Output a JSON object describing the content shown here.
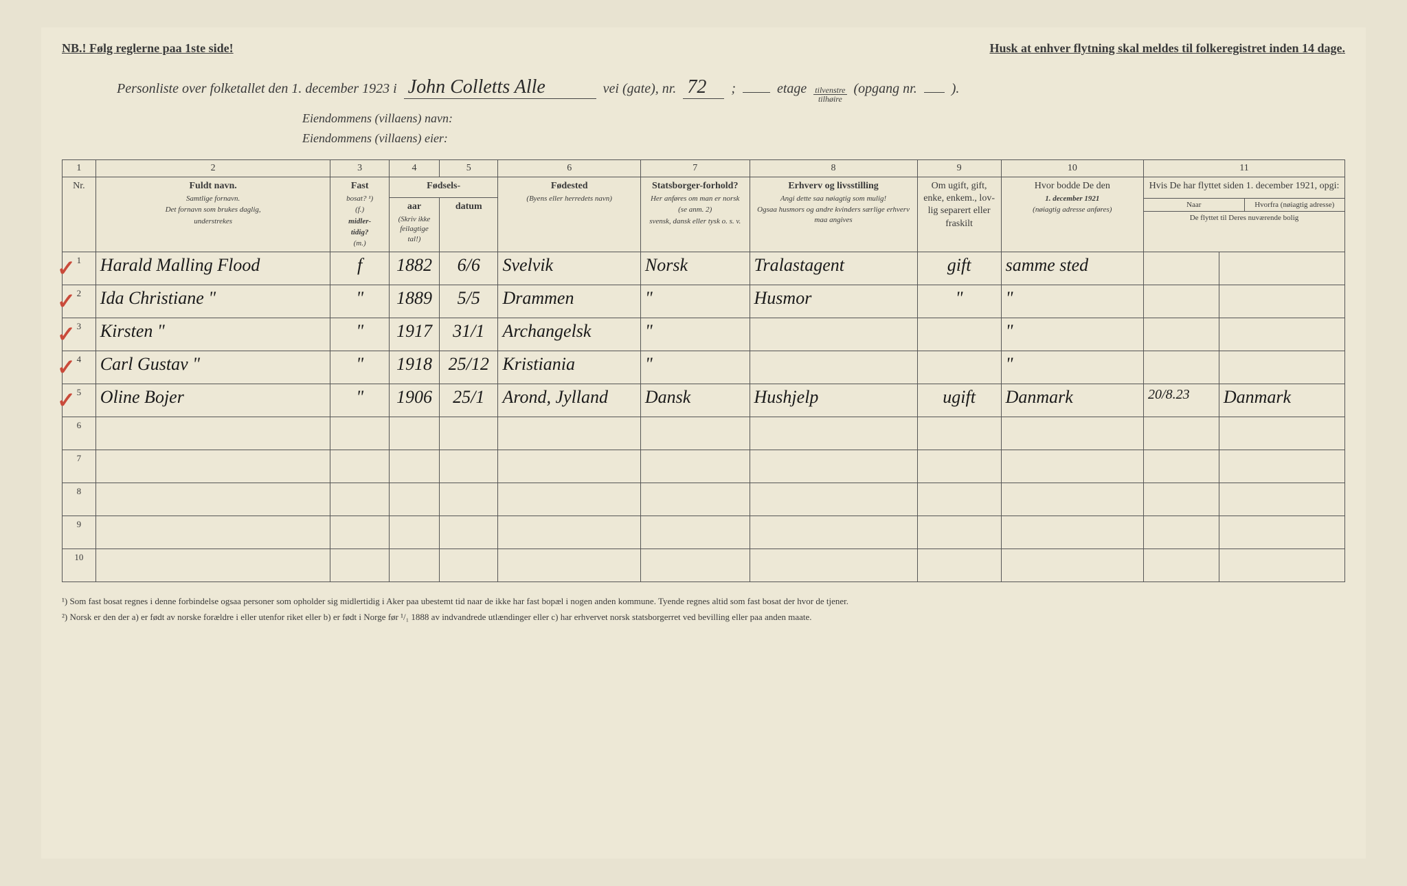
{
  "header": {
    "left": "NB.! Følg reglerne paa 1ste side!",
    "right": "Husk at enhver flytning skal meldes til folkeregistret inden 14 dage."
  },
  "titleLine": {
    "prefix": "Personliste over folketallet den 1. december 1923 i",
    "street": "John Colletts Alle",
    "veiLabel": "vei (gate), nr.",
    "streetNumber": "72",
    "semicolon": ";",
    "etageLabel": "etage",
    "fracTop": "tilvenstre",
    "fracBot": "tilhøire",
    "opgangLabel": "(opgang nr.",
    "closeParen": ")."
  },
  "subLines": {
    "villaName": "Eiendommens (villaens) navn:",
    "villaOwner": "Eiendommens (villaens) eier:"
  },
  "columns": {
    "numbers": [
      "1",
      "2",
      "3",
      "4",
      "5",
      "6",
      "7",
      "8",
      "9",
      "10",
      "11"
    ],
    "c1": "Nr.",
    "c2": {
      "title": "Fuldt navn.",
      "sub1": "Samtlige fornavn.",
      "sub2": "Det fornavn som brukes daglig,",
      "sub3": "understrekes"
    },
    "c3": {
      "title": "Fast",
      "sub1": "bosat? ¹)",
      "sub2": "(f.)",
      "sub3": "midler-",
      "sub4": "tidig?",
      "sub5": "(m.)"
    },
    "c45": {
      "title": "Fødsels-",
      "aar": "aar",
      "datum": "datum",
      "note": "(Skriv ikke feilagtige tal!)"
    },
    "c6": {
      "title": "Fødested",
      "sub": "(Byens eller herredets navn)"
    },
    "c7": {
      "title": "Statsborger-forhold?",
      "sub1": "Her anføres om man er norsk",
      "sub2": "(se anm. 2)",
      "sub3": "svensk, dansk eller tysk o. s. v."
    },
    "c8": {
      "title": "Erhverv og livsstilling",
      "sub1": "Angi dette saa nøiagtig som mulig!",
      "sub2": "Ogsaa husmors og andre kvinders særlige erhverv maa angives"
    },
    "c9": {
      "title": "Om ugift, gift, enke, enkem., lov-lig separert eller fraskilt"
    },
    "c10": {
      "title": "Hvor bodde De den",
      "sub1": "1. december 1921",
      "sub2": "(nøiagtig adresse anføres)"
    },
    "c11": {
      "title": "Hvis De har flyttet siden 1. december 1921, opgi:",
      "subA": "Naar",
      "subB": "Hvorfra (nøiagtig adresse)",
      "subC": "De flyttet til Deres nuværende bolig"
    }
  },
  "rows": [
    {
      "nr": "1",
      "check": true,
      "name": "Harald Malling Flood",
      "fast": "f",
      "aar": "1882",
      "datum": "6/6",
      "sted": "Svelvik",
      "stat": "Norsk",
      "erhverv": "Tralastagent",
      "gift": "gift",
      "bodde": "samme sted",
      "naar": "",
      "hvorfra": ""
    },
    {
      "nr": "2",
      "check": true,
      "name": "Ida Christiane   \"",
      "fast": "\"",
      "aar": "1889",
      "datum": "5/5",
      "sted": "Drammen",
      "stat": "\"",
      "erhverv": "Husmor",
      "gift": "\"",
      "bodde": "\"",
      "naar": "",
      "hvorfra": ""
    },
    {
      "nr": "3",
      "check": true,
      "name": "Kirsten   \"",
      "fast": "\"",
      "aar": "1917",
      "datum": "31/1",
      "sted": "Archangelsk",
      "stat": "\"",
      "erhverv": "",
      "gift": "",
      "bodde": "\"",
      "naar": "",
      "hvorfra": ""
    },
    {
      "nr": "4",
      "check": true,
      "name": "Carl Gustav   \"",
      "fast": "\"",
      "aar": "1918",
      "datum": "25/12",
      "sted": "Kristiania",
      "stat": "\"",
      "erhverv": "",
      "gift": "",
      "bodde": "\"",
      "naar": "",
      "hvorfra": ""
    },
    {
      "nr": "5",
      "check": true,
      "name": "Oline Bojer",
      "fast": "\"",
      "aar": "1906",
      "datum": "25/1",
      "sted": "Arond, Jylland",
      "stat": "Dansk",
      "erhverv": "Hushjelp",
      "gift": "ugift",
      "bodde": "Danmark",
      "naar": "20/8.23",
      "hvorfra": "Danmark"
    },
    {
      "nr": "6",
      "check": false,
      "name": "",
      "fast": "",
      "aar": "",
      "datum": "",
      "sted": "",
      "stat": "",
      "erhverv": "",
      "gift": "",
      "bodde": "",
      "naar": "",
      "hvorfra": ""
    },
    {
      "nr": "7",
      "check": false,
      "name": "",
      "fast": "",
      "aar": "",
      "datum": "",
      "sted": "",
      "stat": "",
      "erhverv": "",
      "gift": "",
      "bodde": "",
      "naar": "",
      "hvorfra": ""
    },
    {
      "nr": "8",
      "check": false,
      "name": "",
      "fast": "",
      "aar": "",
      "datum": "",
      "sted": "",
      "stat": "",
      "erhverv": "",
      "gift": "",
      "bodde": "",
      "naar": "",
      "hvorfra": ""
    },
    {
      "nr": "9",
      "check": false,
      "name": "",
      "fast": "",
      "aar": "",
      "datum": "",
      "sted": "",
      "stat": "",
      "erhverv": "",
      "gift": "",
      "bodde": "",
      "naar": "",
      "hvorfra": ""
    },
    {
      "nr": "10",
      "check": false,
      "name": "",
      "fast": "",
      "aar": "",
      "datum": "",
      "sted": "",
      "stat": "",
      "erhverv": "",
      "gift": "",
      "bodde": "",
      "naar": "",
      "hvorfra": ""
    }
  ],
  "footnotes": {
    "f1": "¹) Som fast bosat regnes i denne forbindelse ogsaa personer som opholder sig midlertidig i Aker paa ubestemt tid naar de ikke har fast bopæl i nogen anden kommune. Tyende regnes altid som fast bosat der hvor de tjener.",
    "f2": "²) Norsk er den der a) er født av norske forældre i eller utenfor riket eller b) er født i Norge før ¹/₁ 1888 av indvandrede utlændinger eller c) har erhvervet norsk statsborgerret ved bevilling eller paa anden maate."
  },
  "style": {
    "paperColor": "#ede8d6",
    "inkColor": "#2a2a2a",
    "ruleColor": "#555555",
    "checkColor": "#c94a3a"
  }
}
